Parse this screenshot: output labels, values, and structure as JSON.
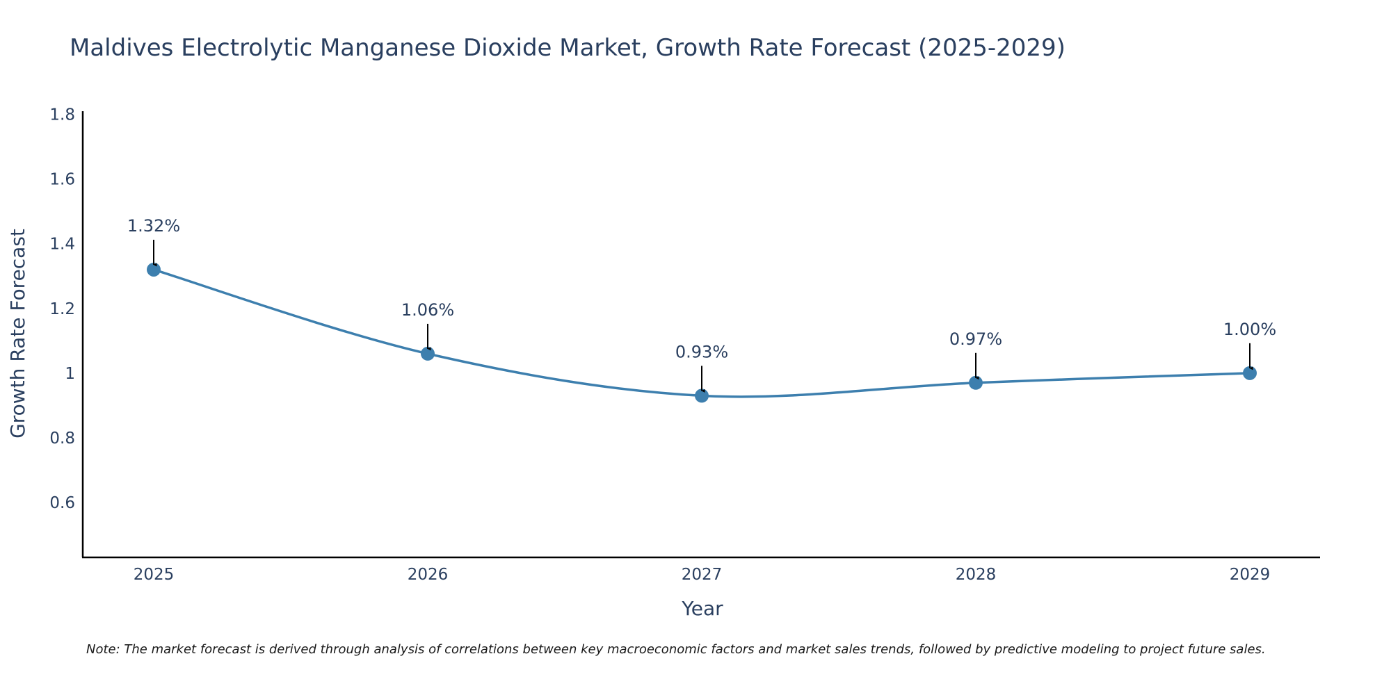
{
  "chart_data": {
    "type": "line",
    "title": "Maldives Electrolytic Manganese Dioxide Market, Growth Rate Forecast (2025-2029)",
    "xlabel": "Year",
    "ylabel": "Growth Rate Forecast",
    "categories": [
      "2025",
      "2026",
      "2027",
      "2028",
      "2029"
    ],
    "values": [
      1.32,
      1.06,
      0.93,
      0.97,
      1.0
    ],
    "data_labels": [
      "1.32%",
      "1.06%",
      "0.93%",
      "0.97%",
      "1.00%"
    ],
    "y_ticks": [
      0.6,
      0.8,
      1,
      1.2,
      1.4,
      1.6,
      1.8
    ],
    "y_tick_labels": [
      "0.6",
      "0.8",
      "1",
      "1.2",
      "1.4",
      "1.6",
      "1.8"
    ],
    "ylim": [
      0.43,
      1.81
    ],
    "grid": false,
    "line_shape": "spline",
    "colors": {
      "line": "#3d7fae",
      "marker": "#3d7fae",
      "arrow": "#000000",
      "axis": "#000000",
      "text": "#2a3f5f"
    },
    "note": "Note: The market forecast is derived through analysis of correlations between key macroeconomic factors and market sales trends, followed by predictive modeling to project future sales."
  }
}
